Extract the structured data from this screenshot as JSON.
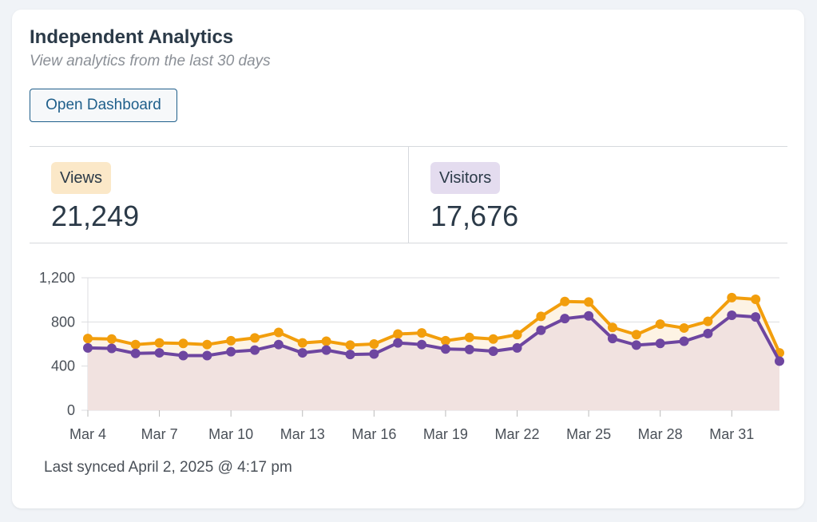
{
  "header": {
    "title": "Independent Analytics",
    "subtitle": "View analytics from the last 30 days",
    "button": "Open Dashboard"
  },
  "stats": [
    {
      "label": "Views",
      "value": "21,249",
      "color": "#fbe8c8"
    },
    {
      "label": "Visitors",
      "value": "17,676",
      "color": "#e4dcef"
    }
  ],
  "footer": {
    "sync": "Last synced April 2, 2025 @ 4:17 pm"
  },
  "chart_data": {
    "type": "line",
    "x_ticks": [
      "Mar 4",
      "Mar 7",
      "Mar 10",
      "Mar 13",
      "Mar 16",
      "Mar 19",
      "Mar 22",
      "Mar 25",
      "Mar 28",
      "Mar 31"
    ],
    "y_ticks": [
      "0",
      "400",
      "800",
      "1,200"
    ],
    "ylim": [
      0,
      1200
    ],
    "grid": true,
    "x": [
      "Mar 4",
      "Mar 5",
      "Mar 6",
      "Mar 7",
      "Mar 8",
      "Mar 9",
      "Mar 10",
      "Mar 11",
      "Mar 12",
      "Mar 13",
      "Mar 14",
      "Mar 15",
      "Mar 16",
      "Mar 17",
      "Mar 18",
      "Mar 19",
      "Mar 20",
      "Mar 21",
      "Mar 22",
      "Mar 23",
      "Mar 24",
      "Mar 25",
      "Mar 26",
      "Mar 27",
      "Mar 28",
      "Mar 29",
      "Mar 30",
      "Mar 31",
      "Apr 1",
      "Apr 2"
    ],
    "series": [
      {
        "name": "Views",
        "color": "#f29e0c",
        "fill": "#fdf3e4",
        "values": [
          650,
          645,
          595,
          610,
          605,
          595,
          630,
          655,
          705,
          610,
          625,
          590,
          600,
          690,
          700,
          630,
          660,
          645,
          685,
          850,
          985,
          980,
          750,
          685,
          780,
          745,
          805,
          1020,
          1005,
          520
        ]
      },
      {
        "name": "Visitors",
        "color": "#6e46a0",
        "fill": "#f1e2e0",
        "values": [
          565,
          560,
          515,
          520,
          495,
          495,
          530,
          545,
          595,
          520,
          545,
          505,
          510,
          610,
          595,
          555,
          550,
          535,
          565,
          725,
          830,
          855,
          650,
          590,
          605,
          625,
          695,
          860,
          845,
          445
        ]
      }
    ]
  }
}
